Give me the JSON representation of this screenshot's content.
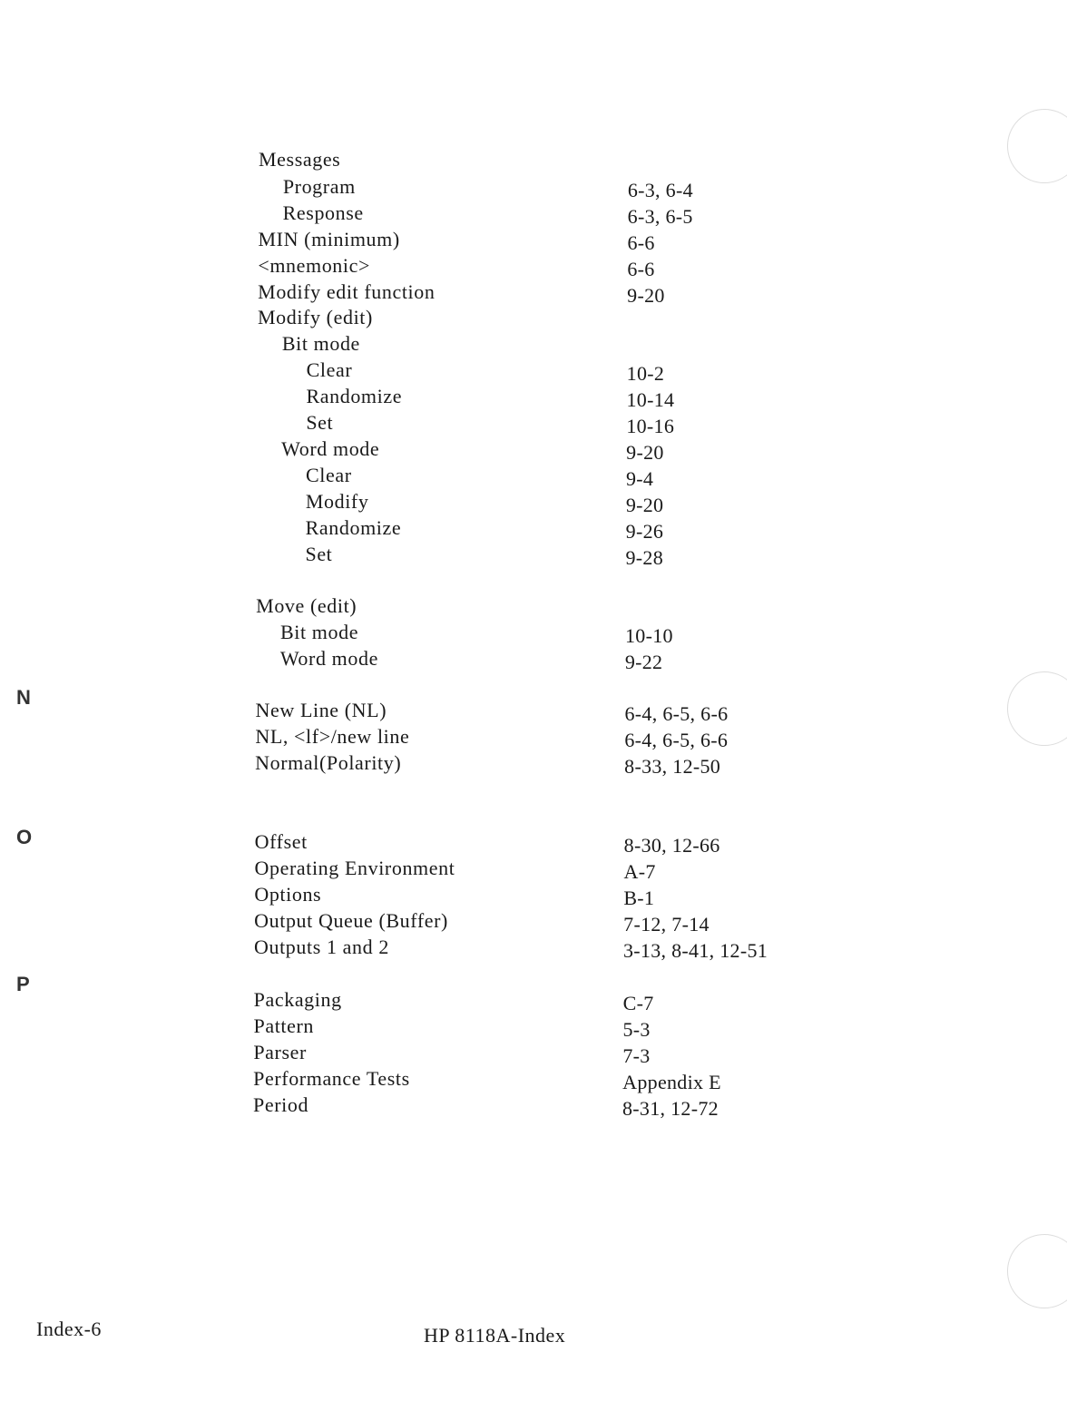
{
  "sections": [
    {
      "letter": "",
      "entries": [
        {
          "term": "Messages",
          "pages": "",
          "sub": [
            {
              "term": "Program",
              "pages": "6-3, 6-4"
            },
            {
              "term": "Response",
              "pages": "6-3, 6-5"
            }
          ]
        },
        {
          "term": "MIN (minimum)",
          "pages": "6-6"
        },
        {
          "term": "<mnemonic>",
          "pages": "6-6"
        },
        {
          "term": "Modify edit function",
          "pages": "9-20"
        },
        {
          "term": "Modify (edit)",
          "pages": "",
          "sub": [
            {
              "term": "Bit mode",
              "pages": "",
              "sub": [
                {
                  "term": "Clear",
                  "pages": "10-2"
                },
                {
                  "term": "Randomize",
                  "pages": "10-14"
                },
                {
                  "term": "Set",
                  "pages": "10-16"
                }
              ]
            },
            {
              "term": "Word mode",
              "pages": "9-20",
              "sub": [
                {
                  "term": "Clear",
                  "pages": "9-4"
                },
                {
                  "term": "Modify",
                  "pages": "9-20"
                },
                {
                  "term": "Randomize",
                  "pages": "9-26"
                },
                {
                  "term": "Set",
                  "pages": "9-28"
                }
              ]
            }
          ]
        },
        {
          "term": "Move (edit)",
          "pages": "",
          "sub": [
            {
              "term": "Bit mode",
              "pages": "10-10"
            },
            {
              "term": "Word mode",
              "pages": "9-22"
            }
          ]
        }
      ]
    },
    {
      "letter": "N",
      "entries": [
        {
          "term": "New Line (NL)",
          "pages": "6-4, 6-5, 6-6"
        },
        {
          "term": "NL, <lf>/new line",
          "pages": "6-4, 6-5, 6-6"
        },
        {
          "term": "Normal(Polarity)",
          "pages": "8-33, 12-50"
        }
      ]
    },
    {
      "letter": "O",
      "entries": [
        {
          "term": "Offset",
          "pages": "8-30, 12-66"
        },
        {
          "term": "Operating Environment",
          "pages": "A-7"
        },
        {
          "term": "Options",
          "pages": "B-1"
        },
        {
          "term": "Output Queue (Buffer)",
          "pages": "7-12, 7-14"
        },
        {
          "term": "Outputs 1 and 2",
          "pages": "3-13, 8-41, 12-51"
        }
      ]
    },
    {
      "letter": "P",
      "entries": [
        {
          "term": "Packaging",
          "pages": "C-7"
        },
        {
          "term": "Pattern",
          "pages": "5-3"
        },
        {
          "term": "Parser",
          "pages": "7-3"
        },
        {
          "term": "Performance Tests",
          "pages": "Appendix E"
        },
        {
          "term": "Period",
          "pages": "8-31, 12-72"
        }
      ]
    }
  ],
  "footer": {
    "page_label": "Index-6",
    "doc_title": "HP 8118A-Index"
  }
}
